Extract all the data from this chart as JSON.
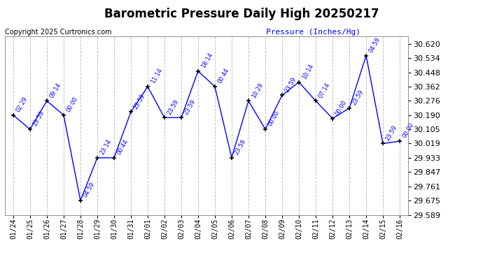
{
  "title": "Barometric Pressure Daily High 20250217",
  "pressure_label": "Pressure (Inches/Hg)",
  "copyright": "Copyright 2025 Curtronics.com",
  "line_color": "#0000ff",
  "bg_color": "#ffffff",
  "grid_color": "#c0c0c0",
  "ylim": [
    29.589,
    30.663
  ],
  "yticks": [
    29.589,
    29.675,
    29.761,
    29.847,
    29.933,
    30.019,
    30.105,
    30.19,
    30.276,
    30.362,
    30.448,
    30.534,
    30.62
  ],
  "points": [
    {
      "x": "01/24",
      "time": "02:29",
      "y": 30.19
    },
    {
      "x": "01/25",
      "time": "23:59",
      "y": 30.105
    },
    {
      "x": "01/26",
      "time": "09:14",
      "y": 30.276
    },
    {
      "x": "01/27",
      "time": "00:00",
      "y": 30.19
    },
    {
      "x": "01/28",
      "time": "04:59",
      "y": 29.675
    },
    {
      "x": "01/29",
      "time": "23:14",
      "y": 29.933
    },
    {
      "x": "01/30",
      "time": "00:44",
      "y": 29.933
    },
    {
      "x": "01/31",
      "time": "23:59",
      "y": 30.209
    },
    {
      "x": "02/01",
      "time": "11:14",
      "y": 30.362
    },
    {
      "x": "02/02",
      "time": "23:59",
      "y": 30.175
    },
    {
      "x": "02/03",
      "time": "23:59",
      "y": 30.175
    },
    {
      "x": "02/04",
      "time": "18:14",
      "y": 30.456
    },
    {
      "x": "02/05",
      "time": "00:44",
      "y": 30.362
    },
    {
      "x": "02/06",
      "time": "23:59",
      "y": 29.933
    },
    {
      "x": "02/07",
      "time": "10:29",
      "y": 30.276
    },
    {
      "x": "02/08",
      "time": "00:00",
      "y": 30.105
    },
    {
      "x": "02/09",
      "time": "23:59",
      "y": 30.31
    },
    {
      "x": "02/10",
      "time": "10:14",
      "y": 30.389
    },
    {
      "x": "02/11",
      "time": "07:14",
      "y": 30.276
    },
    {
      "x": "02/12",
      "time": "00:00",
      "y": 30.17
    },
    {
      "x": "02/13",
      "time": "23:59",
      "y": 30.232
    },
    {
      "x": "02/14",
      "time": "04:59",
      "y": 30.549
    },
    {
      "x": "02/15",
      "time": "23:59",
      "y": 30.019
    },
    {
      "x": "02/16",
      "time": "00:00",
      "y": 30.033
    }
  ]
}
